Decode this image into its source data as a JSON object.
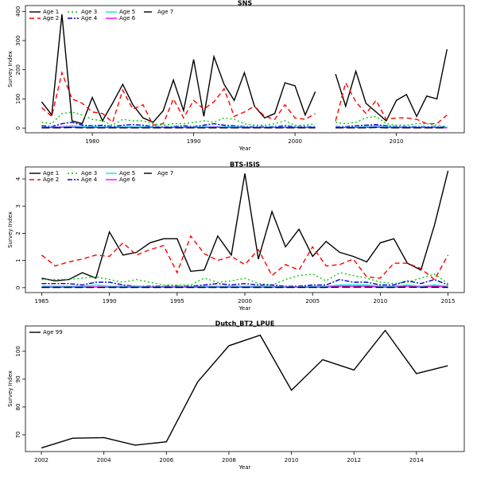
{
  "chart_data": [
    {
      "type": "line",
      "title": "SNS",
      "x_label": "Year",
      "y_label": "Survey Index",
      "x": [
        1975,
        1976,
        1977,
        1978,
        1979,
        1980,
        1981,
        1982,
        1983,
        1984,
        1985,
        1986,
        1987,
        1988,
        1989,
        1990,
        1991,
        1992,
        1993,
        1994,
        1995,
        1996,
        1997,
        1998,
        1999,
        2000,
        2001,
        2002,
        2003,
        2004,
        2005,
        2006,
        2007,
        2008,
        2009,
        2010,
        2011,
        2012,
        2013,
        2014,
        2015
      ],
      "xlim": [
        1973.4,
        2016.7
      ],
      "xticks": [
        1980,
        1990,
        2000,
        2010
      ],
      "ylim": [
        -16,
        420
      ],
      "yticks": [
        0,
        100,
        200,
        300,
        400
      ],
      "legend": "upper left",
      "series": [
        {
          "name": "Age 1",
          "color": "#000000",
          "linestyle": "solid",
          "values": [
            90,
            45,
            390,
            25,
            15,
            105,
            25,
            85,
            150,
            80,
            35,
            20,
            60,
            165,
            60,
            235,
            40,
            245,
            150,
            95,
            190,
            75,
            35,
            50,
            155,
            145,
            45,
            125,
            null,
            185,
            75,
            195,
            85,
            55,
            25,
            95,
            115,
            40,
            110,
            100,
            270
          ]
        },
        {
          "name": "Age 2",
          "color": "#ff0000",
          "linestyle": "dashed",
          "values": [
            70,
            40,
            190,
            100,
            85,
            55,
            50,
            20,
            130,
            65,
            80,
            10,
            15,
            100,
            35,
            95,
            65,
            90,
            135,
            40,
            55,
            75,
            40,
            30,
            80,
            35,
            30,
            50,
            null,
            25,
            155,
            90,
            50,
            95,
            30,
            35,
            35,
            30,
            15,
            15,
            45
          ]
        },
        {
          "name": "Age 3",
          "color": "#00cd00",
          "linestyle": "dotted",
          "values": [
            20,
            15,
            50,
            55,
            45,
            30,
            25,
            10,
            30,
            25,
            25,
            15,
            10,
            15,
            15,
            20,
            25,
            20,
            35,
            30,
            15,
            10,
            10,
            15,
            25,
            10,
            10,
            15,
            null,
            20,
            15,
            20,
            35,
            40,
            15,
            10,
            10,
            15,
            15,
            10,
            5
          ]
        },
        {
          "name": "Age 4",
          "color": "#0000cd",
          "linestyle": "dashdot",
          "values": [
            8,
            5,
            15,
            20,
            10,
            8,
            10,
            5,
            10,
            12,
            10,
            5,
            5,
            5,
            8,
            5,
            10,
            15,
            10,
            8,
            5,
            5,
            5,
            5,
            8,
            5,
            5,
            5,
            null,
            5,
            5,
            8,
            10,
            12,
            8,
            5,
            5,
            5,
            5,
            5,
            3
          ]
        },
        {
          "name": "Age 5",
          "color": "#00e5ee",
          "linestyle": "solid",
          "values": [
            3,
            3,
            5,
            8,
            5,
            5,
            5,
            3,
            5,
            5,
            5,
            3,
            3,
            3,
            3,
            3,
            5,
            5,
            5,
            5,
            3,
            3,
            3,
            3,
            3,
            3,
            3,
            3,
            null,
            3,
            3,
            3,
            5,
            8,
            5,
            3,
            3,
            3,
            3,
            3,
            2
          ]
        },
        {
          "name": "Age 6",
          "color": "#ff00ff",
          "linestyle": "solid",
          "values": [
            2,
            2,
            3,
            3,
            2,
            2,
            2,
            2,
            2,
            2,
            2,
            2,
            2,
            2,
            2,
            2,
            2,
            3,
            2,
            2,
            2,
            2,
            2,
            2,
            2,
            2,
            2,
            2,
            null,
            2,
            2,
            2,
            2,
            3,
            2,
            2,
            2,
            2,
            2,
            2,
            1
          ]
        },
        {
          "name": "Age 7",
          "color": "#000000",
          "linestyle": "longdash",
          "values": [
            1,
            1,
            1,
            2,
            1,
            1,
            1,
            1,
            1,
            1,
            1,
            1,
            1,
            1,
            1,
            1,
            1,
            1,
            1,
            1,
            1,
            1,
            1,
            1,
            1,
            1,
            1,
            1,
            null,
            1,
            1,
            1,
            1,
            2,
            1,
            1,
            1,
            1,
            1,
            1,
            1
          ]
        }
      ]
    },
    {
      "type": "line",
      "title": "BTS-ISIS",
      "x_label": "Year",
      "y_label": "Survey Index",
      "x": [
        1985,
        1986,
        1987,
        1988,
        1989,
        1990,
        1991,
        1992,
        1993,
        1994,
        1995,
        1996,
        1997,
        1998,
        1999,
        2000,
        2001,
        2002,
        2003,
        2004,
        2005,
        2006,
        2007,
        2008,
        2009,
        2010,
        2011,
        2012,
        2013,
        2014,
        2015
      ],
      "xlim": [
        1983.8,
        2016.2
      ],
      "xticks": [
        1985,
        1990,
        1995,
        2000,
        2005,
        2010,
        2015
      ],
      "ylim": [
        -0.18,
        4.44
      ],
      "yticks": [
        0,
        1,
        2,
        3,
        4
      ],
      "legend": "upper left",
      "series": [
        {
          "name": "Age 1",
          "color": "#000000",
          "linestyle": "solid",
          "values": [
            0.35,
            0.25,
            0.3,
            0.55,
            0.35,
            2.05,
            1.2,
            1.3,
            1.65,
            1.8,
            1.8,
            0.6,
            0.65,
            1.9,
            1.2,
            4.2,
            1.05,
            2.8,
            1.5,
            2.15,
            1.15,
            1.7,
            1.3,
            1.15,
            0.95,
            1.65,
            1.8,
            0.9,
            0.65,
            2.3,
            4.3
          ]
        },
        {
          "name": "Age 2",
          "color": "#ff0000",
          "linestyle": "dashed",
          "values": [
            1.2,
            0.8,
            0.95,
            1.05,
            1.2,
            1.15,
            1.65,
            1.2,
            1.4,
            1.55,
            0.55,
            1.9,
            1.25,
            1.0,
            1.15,
            0.85,
            1.4,
            0.45,
            0.85,
            0.65,
            1.5,
            0.8,
            0.85,
            1.05,
            0.4,
            0.35,
            0.9,
            0.9,
            0.7,
            0.3,
            1.2
          ]
        },
        {
          "name": "Age 3",
          "color": "#00cd00",
          "linestyle": "dotted",
          "values": [
            0.3,
            0.3,
            0.3,
            0.35,
            0.4,
            0.3,
            0.2,
            0.3,
            0.2,
            0.1,
            0.1,
            0.1,
            0.35,
            0.2,
            0.25,
            0.35,
            0.15,
            0.1,
            0.3,
            0.45,
            0.5,
            0.25,
            0.55,
            0.45,
            0.35,
            0.2,
            0.15,
            0.2,
            0.35,
            0.5,
            0.15
          ]
        },
        {
          "name": "Age 4",
          "color": "#0000cd",
          "linestyle": "dashdot",
          "values": [
            0.15,
            0.15,
            0.15,
            0.1,
            0.2,
            0.2,
            0.1,
            0.05,
            0.05,
            0.05,
            0.05,
            0.05,
            0.1,
            0.15,
            0.1,
            0.15,
            0.1,
            0.1,
            0.05,
            0.05,
            0.1,
            0.1,
            0.3,
            0.2,
            0.2,
            0.1,
            0.1,
            0.25,
            0.15,
            0.3,
            0.1
          ]
        },
        {
          "name": "Age 5",
          "color": "#00e5ee",
          "linestyle": "solid",
          "values": [
            0.05,
            0.05,
            0.05,
            0.05,
            0.1,
            0.05,
            0.05,
            0.05,
            0.03,
            0.03,
            0.03,
            0.03,
            0.05,
            0.05,
            0.05,
            0.05,
            0.05,
            0.05,
            0.03,
            0.03,
            0.05,
            0.05,
            0.1,
            0.1,
            0.1,
            0.05,
            0.05,
            0.1,
            0.05,
            0.1,
            0.05
          ]
        },
        {
          "name": "Age 6",
          "color": "#ff00ff",
          "linestyle": "solid",
          "values": [
            0.02,
            0.02,
            0.02,
            0.02,
            0.03,
            0.02,
            0.02,
            0.02,
            0.02,
            0.02,
            0.02,
            0.02,
            0.02,
            0.02,
            0.02,
            0.02,
            0.02,
            0.02,
            0.02,
            0.02,
            0.02,
            0.02,
            0.05,
            0.05,
            0.05,
            0.02,
            0.02,
            0.05,
            0.02,
            0.05,
            0.02
          ]
        },
        {
          "name": "Age 7",
          "color": "#000000",
          "linestyle": "longdash",
          "values": [
            0.01,
            0.01,
            0.01,
            0.01,
            0.01,
            0.01,
            0.01,
            0.01,
            0.01,
            0.01,
            0.01,
            0.01,
            0.01,
            0.01,
            0.01,
            0.01,
            0.01,
            0.01,
            0.01,
            0.01,
            0.01,
            0.01,
            0.02,
            0.02,
            0.02,
            0.01,
            0.01,
            0.02,
            0.01,
            0.02,
            0.01
          ]
        }
      ]
    },
    {
      "type": "line",
      "title": "Dutch_BT2_LPUE",
      "x_label": "Year",
      "y_label": "Survey Index",
      "x": [
        2002,
        2003,
        2004,
        2005,
        2006,
        2007,
        2008,
        2009,
        2010,
        2011,
        2012,
        2013,
        2014,
        2015
      ],
      "xlim": [
        2001.49,
        2015.53
      ],
      "xticks": [
        2002,
        2004,
        2006,
        2008,
        2010,
        2012,
        2014
      ],
      "ylim": [
        64,
        109.1
      ],
      "yticks": [
        70,
        80,
        90,
        100
      ],
      "legend": "upper left",
      "series": [
        {
          "name": "Age 99",
          "color": "#000000",
          "linestyle": "solid",
          "values": [
            65.3,
            68.8,
            69,
            66.3,
            67.5,
            89,
            102,
            105.8,
            86,
            97,
            93.3,
            107.5,
            92,
            94.8
          ]
        }
      ]
    }
  ]
}
